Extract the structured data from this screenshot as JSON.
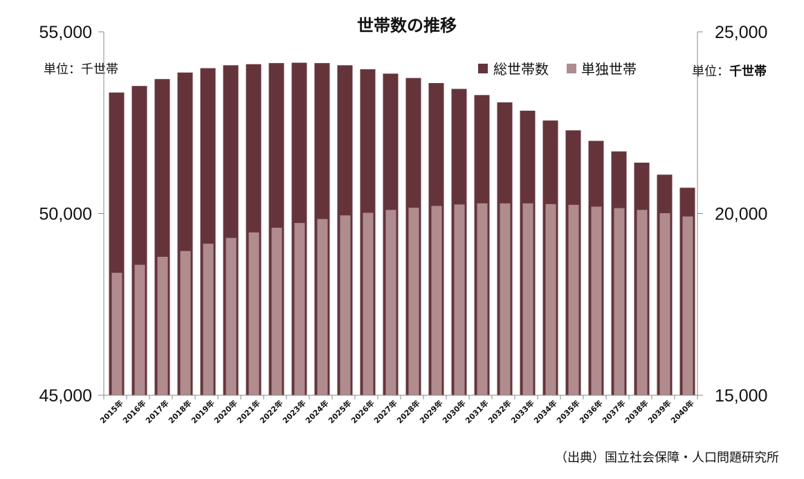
{
  "chart_data": {
    "type": "bar",
    "title": "世帯数の推移",
    "unit_left": "単位：千世帯",
    "unit_right_prefix": "単位：",
    "unit_right_bold": "千世帯",
    "source": "（出典）国立社会保障・人口問題研究所",
    "categories": [
      "2015年",
      "2016年",
      "2017年",
      "2018年",
      "2019年",
      "2020年",
      "2021年",
      "2022年",
      "2023年",
      "2024年",
      "2025年",
      "2026年",
      "2027年",
      "2028年",
      "2029年",
      "2030年",
      "2031年",
      "2032年",
      "2033年",
      "2034年",
      "2035年",
      "2036年",
      "2037年",
      "2038年",
      "2039年",
      "2040年"
    ],
    "y_left": {
      "min": 45000,
      "max": 55000,
      "ticks": [
        "45,000",
        "50,000",
        "55,000"
      ],
      "tick_values": [
        45000,
        50000,
        55000
      ]
    },
    "y_right": {
      "min": 15000,
      "max": 25000,
      "ticks": [
        "15,000",
        "20,000",
        "25,000"
      ],
      "tick_values": [
        15000,
        20000,
        25000
      ]
    },
    "series": [
      {
        "name": "総世帯数",
        "axis": "left",
        "color": "#65343b",
        "values": [
          53330,
          53510,
          53700,
          53880,
          54000,
          54080,
          54110,
          54140,
          54150,
          54140,
          54080,
          53970,
          53850,
          53730,
          53590,
          53430,
          53260,
          53060,
          52830,
          52560,
          52290,
          52000,
          51710,
          51400,
          51070,
          50710
        ]
      },
      {
        "name": "単独世帯",
        "axis": "right",
        "color": "#b08c8f",
        "values": [
          18370,
          18590,
          18810,
          18970,
          19170,
          19330,
          19480,
          19610,
          19740,
          19850,
          19950,
          20020,
          20100,
          20160,
          20210,
          20250,
          20280,
          20280,
          20280,
          20260,
          20240,
          20190,
          20150,
          20100,
          20010,
          19920
        ]
      }
    ],
    "legend": [
      {
        "name": "総世帯数",
        "color": "#65343b"
      },
      {
        "name": "単独世帯",
        "color": "#b08c8f"
      }
    ]
  }
}
